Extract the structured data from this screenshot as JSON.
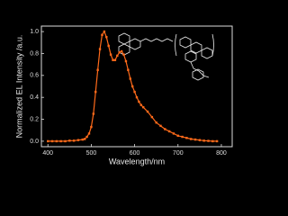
{
  "chart_data": {
    "type": "line",
    "x_label": "Wavelength/nm",
    "y_label": "Normalized EL Intensity /a.u.",
    "x": [
      400,
      410,
      420,
      430,
      440,
      450,
      460,
      470,
      480,
      485,
      490,
      495,
      500,
      505,
      510,
      515,
      520,
      525,
      530,
      535,
      540,
      545,
      550,
      555,
      560,
      565,
      570,
      575,
      580,
      585,
      590,
      595,
      600,
      605,
      610,
      615,
      620,
      630,
      640,
      650,
      660,
      670,
      680,
      690,
      700,
      710,
      720,
      730,
      740,
      750,
      760,
      770,
      780,
      790
    ],
    "series": [
      {
        "color": "#ff6a1a",
        "values": [
          0,
          0,
          0,
          0,
          0,
          0.005,
          0.005,
          0.01,
          0.015,
          0.02,
          0.04,
          0.07,
          0.13,
          0.25,
          0.45,
          0.65,
          0.84,
          0.97,
          1.0,
          0.95,
          0.87,
          0.79,
          0.74,
          0.74,
          0.78,
          0.81,
          0.82,
          0.79,
          0.73,
          0.65,
          0.57,
          0.5,
          0.45,
          0.4,
          0.36,
          0.33,
          0.31,
          0.27,
          0.22,
          0.17,
          0.14,
          0.11,
          0.09,
          0.07,
          0.05,
          0.04,
          0.03,
          0.02,
          0.015,
          0.01,
          0.005,
          0.003,
          0,
          0
        ]
      }
    ],
    "xlim": [
      385,
      825
    ],
    "xticks": [
      400,
      500,
      600,
      700,
      800
    ],
    "ylim": [
      -0.05,
      1.05
    ],
    "yticks": [
      {
        "value": 0,
        "label": "0.0"
      },
      0.2,
      0.4,
      0.6,
      0.8,
      {
        "value": 1,
        "label": "1.0"
      }
    ]
  }
}
